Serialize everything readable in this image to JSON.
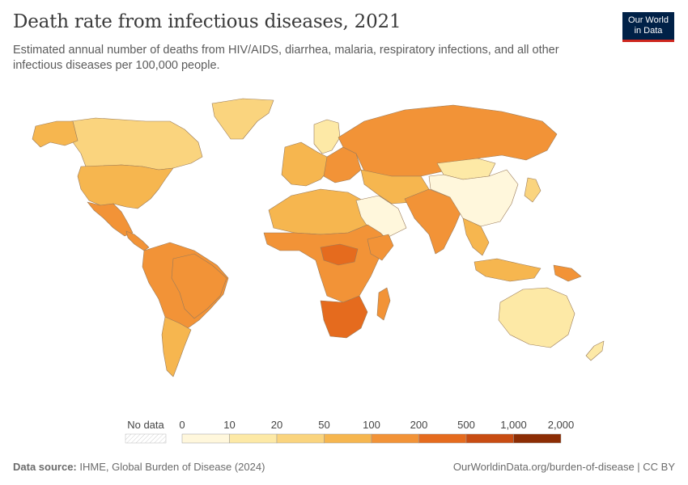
{
  "header": {
    "title": "Death rate from infectious diseases, 2021",
    "subtitle": "Estimated annual number of deaths from HIV/AIDS, diarrhea, malaria, respiratory infections, and all other infectious diseases per 100,000 people."
  },
  "logo": {
    "line1": "Our World",
    "line2": "in Data"
  },
  "legend": {
    "no_data_label": "No data",
    "ticks": [
      "0",
      "10",
      "20",
      "50",
      "100",
      "200",
      "500",
      "1,000",
      "2,000"
    ],
    "bins": [
      {
        "from": 0,
        "to": 10,
        "color": "#fff7dc"
      },
      {
        "from": 10,
        "to": 20,
        "color": "#fde9a6"
      },
      {
        "from": 20,
        "to": 50,
        "color": "#fad47e"
      },
      {
        "from": 50,
        "to": 100,
        "color": "#f6b64f"
      },
      {
        "from": 100,
        "to": 200,
        "color": "#f29337"
      },
      {
        "from": 200,
        "to": 500,
        "color": "#e56b1e"
      },
      {
        "from": 500,
        "to": 1000,
        "color": "#c84c12"
      },
      {
        "from": 1000,
        "to": 2000,
        "color": "#8c2d04"
      }
    ]
  },
  "map_regions": [
    {
      "name": "Canada",
      "bin": 3
    },
    {
      "name": "United States",
      "bin": 4
    },
    {
      "name": "Mexico",
      "bin": 5
    },
    {
      "name": "Greenland",
      "bin": 3
    },
    {
      "name": "South America",
      "bin": 5
    },
    {
      "name": "Argentina",
      "bin": 4
    },
    {
      "name": "Brazil",
      "bin": 5
    },
    {
      "name": "Northern Europe",
      "bin": 4
    },
    {
      "name": "Scandinavia",
      "bin": 2
    },
    {
      "name": "Eastern Europe",
      "bin": 5
    },
    {
      "name": "Russia",
      "bin": 5
    },
    {
      "name": "North Africa",
      "bin": 4
    },
    {
      "name": "Arabian Peninsula",
      "bin": 1
    },
    {
      "name": "West & Central Africa",
      "bin": 5
    },
    {
      "name": "Central African Republic",
      "bin": 6
    },
    {
      "name": "Southern Africa",
      "bin": 6
    },
    {
      "name": "Madagascar",
      "bin": 5
    },
    {
      "name": "Central Asia",
      "bin": 4
    },
    {
      "name": "South Asia",
      "bin": 5
    },
    {
      "name": "China",
      "bin": 1
    },
    {
      "name": "Mongolia",
      "bin": 2
    },
    {
      "name": "Japan",
      "bin": 3
    },
    {
      "name": "Southeast Asia",
      "bin": 4
    },
    {
      "name": "Indonesia",
      "bin": 4
    },
    {
      "name": "Papua New Guinea",
      "bin": 5
    },
    {
      "name": "Australia",
      "bin": 2
    },
    {
      "name": "New Zealand",
      "bin": 2
    }
  ],
  "footer": {
    "source_label": "Data source:",
    "source_text": "IHME, Global Burden of Disease (2024)",
    "url": "OurWorldinData.org/burden-of-disease | CC BY"
  }
}
